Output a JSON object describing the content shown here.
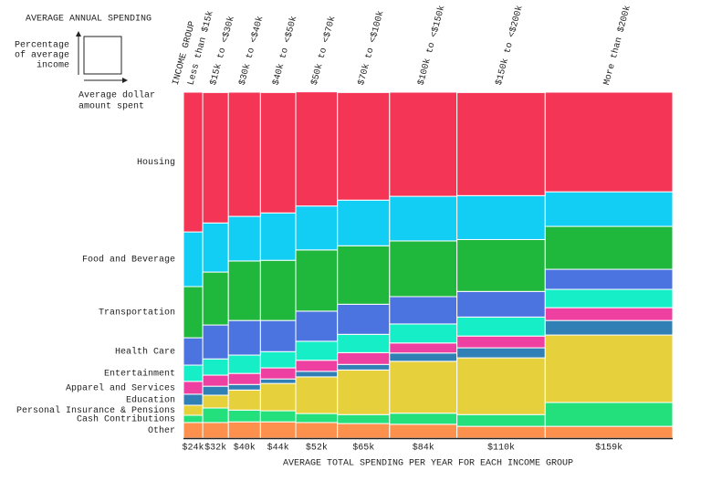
{
  "chart_data": {
    "type": "marimekko",
    "title": "AVERAGE ANNUAL SPENDING",
    "key_y_label": [
      "Percentage",
      "of average",
      "income"
    ],
    "key_x_label": [
      "Average dollar",
      "amount spent"
    ],
    "column_header": "INCOME GROUP",
    "x_label": "AVERAGE TOTAL SPENDING PER YEAR FOR EACH INCOME GROUP",
    "categories": [
      "Less than $15k",
      "$15k to <$30k",
      "$30k to <$40k",
      "$40k to <$50k",
      "$50k to <$70k",
      "$70k to <$100k",
      "$100k to <$150k",
      "$150k to <$200k",
      "More than $200k"
    ],
    "column_spending": [
      24,
      32,
      40,
      44,
      52,
      65,
      84,
      110,
      159
    ],
    "column_spending_labels": [
      "$24k",
      "$32k",
      "$40k",
      "$44k",
      "$52k",
      "$65k",
      "$84k",
      "$110k",
      "$159k"
    ],
    "ylim": [
      0,
      100
    ],
    "series": [
      {
        "name": "Housing",
        "color": "#f43556",
        "values": [
          40.4,
          37.7,
          35.9,
          34.8,
          33,
          31.1,
          30.1,
          29.8,
          28.8
        ]
      },
      {
        "name": "Food and Beverage",
        "color": "#12cdf4",
        "values": [
          15.8,
          14.2,
          12.9,
          13.7,
          12.7,
          13.2,
          12.9,
          12.7,
          10
        ]
      },
      {
        "name": "Transportation",
        "color": "#20b83c",
        "values": [
          14.8,
          15.3,
          17.2,
          17.4,
          17.7,
          16.9,
          16.1,
          15,
          12.4
        ]
      },
      {
        "name": "Health Care",
        "color": "#4b74e0",
        "values": [
          7.9,
          9.8,
          10,
          9,
          8.7,
          8.7,
          7.9,
          7.4,
          5.8
        ]
      },
      {
        "name": "Entertainment",
        "color": "#16eec8",
        "values": [
          4.7,
          4.7,
          5.3,
          4.7,
          5.5,
          5.3,
          5.5,
          5.5,
          5.3
        ]
      },
      {
        "name": "Apparel and Services",
        "color": "#ee40a0",
        "values": [
          3.7,
          3.2,
          3.2,
          3.2,
          3.2,
          3.4,
          2.9,
          3.4,
          3.7
        ]
      },
      {
        "name": "Education",
        "color": "#3080b6",
        "values": [
          3.2,
          2.6,
          1.6,
          1.3,
          1.6,
          1.6,
          2.4,
          2.9,
          4.2
        ]
      },
      {
        "name": "Personal Insurance & Pensions",
        "color": "#e6d03c",
        "values": [
          2.9,
          3.7,
          5.8,
          7.9,
          10.6,
          12.9,
          15,
          16.4,
          19.5
        ]
      },
      {
        "name": "Cash Contributions",
        "color": "#24e07c",
        "values": [
          2.1,
          4.2,
          3.4,
          3.2,
          2.6,
          2.6,
          3.2,
          3.4,
          6.9
        ]
      },
      {
        "name": "Other",
        "color": "#fd904c",
        "values": [
          4.5,
          4.5,
          4.7,
          4.7,
          4.5,
          4.2,
          4,
          3.4,
          3.4
        ]
      }
    ]
  }
}
